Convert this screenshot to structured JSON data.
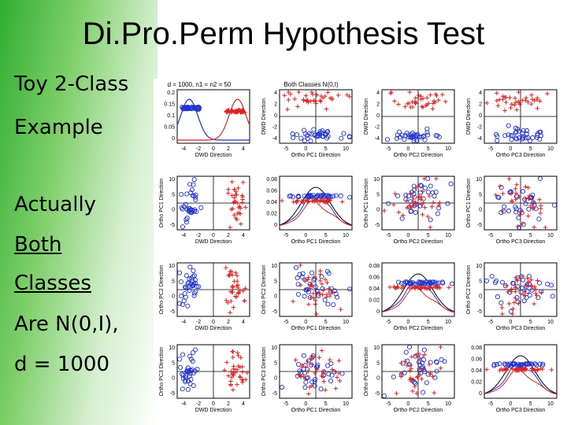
{
  "slide": {
    "title": "Di.Pro.Perm Hypothesis Test",
    "bullets": [
      "Toy 2-Class",
      "Example",
      "Actually",
      "Both",
      "Classes",
      "Are N(0,I),",
      "d = 1000"
    ]
  },
  "figure": {
    "header_left": "d = 1000, n1 = n2 = 50",
    "header_right": "Both Classes N(0,I)",
    "col_xlabels": [
      "DWD Direction",
      "Ortho PC1 Direction",
      "Ortho PC2 Direction",
      "Ortho PC3 Direction"
    ],
    "row_ylabels": [
      "DWD Direction",
      "Ortho PC1 Direction",
      "Ortho PC2 Direction",
      "Ortho PC3 Direction"
    ],
    "x_ticks_dwd": [
      "-4",
      "-2",
      "0",
      "2",
      "4"
    ],
    "x_ticks_pc": [
      "-5",
      "0",
      "5",
      "10"
    ],
    "y_ticks_scatter": [
      "4",
      "2",
      "0",
      "-2",
      "-4"
    ],
    "y_ticks_pc_scatter": [
      "10",
      "5",
      "0",
      "-5"
    ],
    "density_ticks_dwd": [
      "0.2",
      "0.15",
      "0.1",
      "0.05",
      "0"
    ],
    "density_ticks_pc": [
      "0.08",
      "0.06",
      "0.04",
      "0.02",
      "0"
    ],
    "colors": {
      "class1": "#2233cc",
      "class2": "#dd2222",
      "axis": "#000000"
    }
  }
}
